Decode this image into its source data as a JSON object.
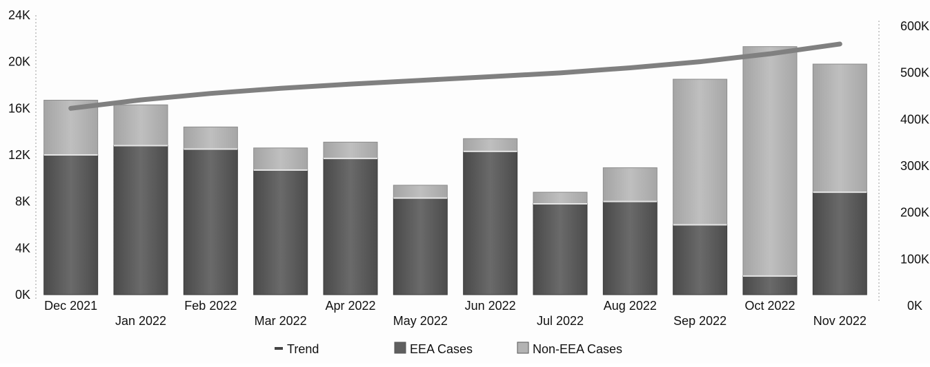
{
  "chart_data": {
    "type": "bar",
    "categories": [
      "Dec 2021",
      "Jan 2022",
      "Feb 2022",
      "Mar 2022",
      "Apr 2022",
      "May 2022",
      "Jun 2022",
      "Jul 2022",
      "Aug 2022",
      "Sep 2022",
      "Oct 2022",
      "Nov 2022"
    ],
    "series": [
      {
        "name": "EEA Cases",
        "values": [
          12000,
          12800,
          12500,
          10700,
          11700,
          8300,
          12300,
          7800,
          8000,
          6000,
          1600,
          8800
        ],
        "color": "#5f5f5f"
      },
      {
        "name": "Non-EEA Cases",
        "values": [
          4700,
          3500,
          1900,
          1900,
          1400,
          1100,
          1100,
          1000,
          2900,
          12500,
          19700,
          11000
        ],
        "color": "#b3b3b3"
      },
      {
        "name": "Trend",
        "values": [
          400000,
          418000,
          432000,
          443000,
          452000,
          460000,
          468000,
          476000,
          487000,
          500000,
          517000,
          538000
        ],
        "color": "#808080",
        "axis": "right"
      }
    ],
    "stacked": true,
    "left_ticks": [
      "0K",
      "4K",
      "8K",
      "12K",
      "16K",
      "20K",
      "24K"
    ],
    "right_ticks": [
      "0K",
      "100K",
      "200K",
      "300K",
      "400K",
      "500K",
      "600K"
    ],
    "ylim_left": [
      0,
      24000
    ],
    "ylim_right": [
      0,
      600000
    ],
    "legend_position": "bottom",
    "legend": [
      {
        "label": "Trend",
        "symbol": "line",
        "color": "#444444"
      },
      {
        "label": "EEA Cases",
        "symbol": "box",
        "color": "#5f5f5f"
      },
      {
        "label": "Non-EEA Cases",
        "symbol": "box",
        "color": "#b3b3b3"
      }
    ]
  }
}
